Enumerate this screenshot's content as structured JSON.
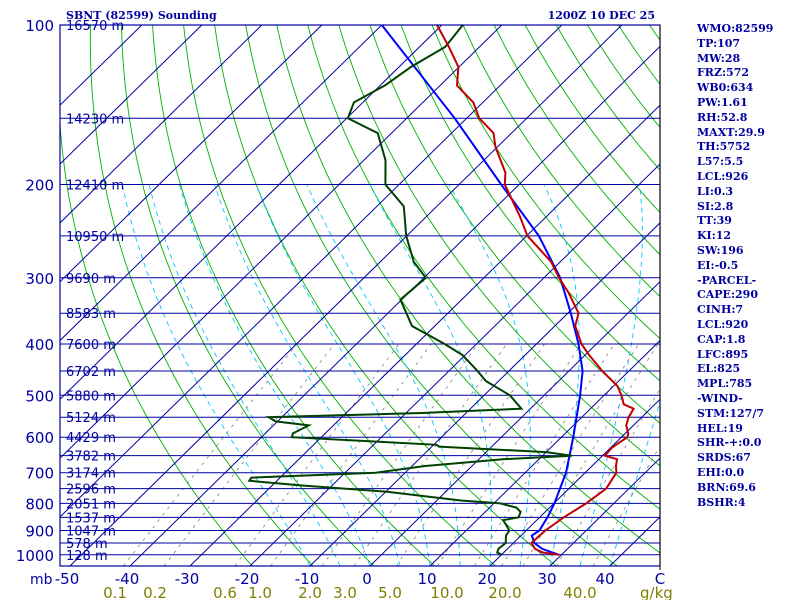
{
  "chart_data": {
    "type": "skew-t",
    "station_label": "SBNT (82599) Sounding",
    "time_label": "1200Z 10 DEC 25",
    "pressure_levels": [
      100,
      200,
      300,
      400,
      500,
      600,
      700,
      800,
      900,
      1000
    ],
    "pressure_labels": [
      "100",
      "200",
      "300",
      "400",
      "500",
      "600",
      "700",
      "800",
      "900",
      "1000"
    ],
    "pressure_axis_unit": "mb",
    "height_labels": [
      {
        "p": 100,
        "text": "16570 m"
      },
      {
        "p": 150,
        "text": "14230 m"
      },
      {
        "p": 200,
        "text": "12410 m"
      },
      {
        "p": 250,
        "text": "10950 m"
      },
      {
        "p": 300,
        "text": "9690 m"
      },
      {
        "p": 350,
        "text": "8583 m"
      },
      {
        "p": 400,
        "text": "7600 m"
      },
      {
        "p": 450,
        "text": "6702 m"
      },
      {
        "p": 500,
        "text": "5880 m"
      },
      {
        "p": 550,
        "text": "5124 m"
      },
      {
        "p": 600,
        "text": "4429 m"
      },
      {
        "p": 650,
        "text": "3782 m"
      },
      {
        "p": 700,
        "text": "3174 m"
      },
      {
        "p": 750,
        "text": "2596 m"
      },
      {
        "p": 800,
        "text": "2051 m"
      },
      {
        "p": 850,
        "text": "1537 m"
      },
      {
        "p": 900,
        "text": "1047 m"
      },
      {
        "p": 950,
        "text": "578 m"
      },
      {
        "p": 1000,
        "text": "128 m"
      }
    ],
    "temperature_ticks": [
      -50,
      -40,
      -30,
      -20,
      -10,
      0,
      10,
      20,
      30,
      40
    ],
    "temperature_tick_labels": [
      "-50",
      "-40",
      "-30",
      "-20",
      "-10",
      "0",
      "10",
      "20",
      "30",
      "40"
    ],
    "temperature_unit": "C",
    "mixing_ratio_labels": [
      "0.1",
      "0.2",
      "0.6",
      "1.0",
      "2.0",
      "3.0",
      "5.0",
      "10.0",
      "20.0",
      "40.0"
    ],
    "mixing_ratio_unit": "g/kg",
    "temperature_profile": [
      [
        1000,
        29.6
      ],
      [
        990,
        26.5
      ],
      [
        975,
        24.6
      ],
      [
        950,
        23.0
      ],
      [
        925,
        23.1
      ],
      [
        900,
        23.2
      ],
      [
        850,
        24.0
      ],
      [
        800,
        25.4
      ],
      [
        750,
        26.2
      ],
      [
        700,
        25.2
      ],
      [
        680,
        24.0
      ],
      [
        660,
        23.0
      ],
      [
        650,
        20.4
      ],
      [
        630,
        20.2
      ],
      [
        620,
        20.4
      ],
      [
        600,
        21.0
      ],
      [
        590,
        20.5
      ],
      [
        570,
        18.8
      ],
      [
        550,
        17.8
      ],
      [
        530,
        17.2
      ],
      [
        520,
        14.8
      ],
      [
        500,
        12.9
      ],
      [
        480,
        10.6
      ],
      [
        450,
        5.6
      ],
      [
        420,
        0.7
      ],
      [
        400,
        -2.5
      ],
      [
        370,
        -6.6
      ],
      [
        350,
        -8.2
      ],
      [
        320,
        -13.4
      ],
      [
        300,
        -17.5
      ],
      [
        280,
        -21.5
      ],
      [
        250,
        -29.9
      ],
      [
        230,
        -34.4
      ],
      [
        200,
        -42.4
      ],
      [
        190,
        -44.3
      ],
      [
        170,
        -50.3
      ],
      [
        160,
        -53.0
      ],
      [
        150,
        -57.9
      ],
      [
        140,
        -61.6
      ],
      [
        130,
        -67.2
      ],
      [
        120,
        -70.1
      ],
      [
        110,
        -75.1
      ],
      [
        100,
        -80.8
      ]
    ],
    "dewpoint_profile": [
      [
        1000,
        20.1
      ],
      [
        990,
        18.9
      ],
      [
        975,
        18.5
      ],
      [
        950,
        18.7
      ],
      [
        920,
        17.5
      ],
      [
        900,
        17.2
      ],
      [
        860,
        14.4
      ],
      [
        850,
        16.5
      ],
      [
        830,
        15.9
      ],
      [
        815,
        14.5
      ],
      [
        800,
        11.1
      ],
      [
        790,
        4.0
      ],
      [
        760,
        -10.0
      ],
      [
        740,
        -25.0
      ],
      [
        725,
        -34.6
      ],
      [
        715,
        -34.8
      ],
      [
        700,
        -14.9
      ],
      [
        680,
        -7.8
      ],
      [
        660,
        4.0
      ],
      [
        650,
        14.9
      ],
      [
        640,
        10.0
      ],
      [
        625,
        -8.8
      ],
      [
        620,
        -9.5
      ],
      [
        600,
        -34.9
      ],
      [
        590,
        -35.4
      ],
      [
        570,
        -34.1
      ],
      [
        560,
        -40.3
      ],
      [
        550,
        -42.2
      ],
      [
        540,
        -17.4
      ],
      [
        530,
        -1.5
      ],
      [
        500,
        -5.7
      ],
      [
        470,
        -12.1
      ],
      [
        450,
        -15.2
      ],
      [
        420,
        -20.4
      ],
      [
        400,
        -25.3
      ],
      [
        370,
        -33.8
      ],
      [
        350,
        -36.9
      ],
      [
        330,
        -40.2
      ],
      [
        300,
        -39.7
      ],
      [
        280,
        -44.4
      ],
      [
        250,
        -50.1
      ],
      [
        220,
        -55.5
      ],
      [
        200,
        -62.3
      ],
      [
        180,
        -66.4
      ],
      [
        160,
        -72.3
      ],
      [
        150,
        -79.8
      ],
      [
        140,
        -81.5
      ],
      [
        130,
        -79.2
      ],
      [
        120,
        -78.0
      ],
      [
        110,
        -75.7
      ],
      [
        100,
        -76.5
      ]
    ],
    "parcel_profile": [
      [
        1000,
        29.6
      ],
      [
        975,
        25.8
      ],
      [
        950,
        23.5
      ],
      [
        920,
        21.8
      ],
      [
        900,
        22.2
      ],
      [
        850,
        21.3
      ],
      [
        800,
        20.1
      ],
      [
        700,
        16.8
      ],
      [
        600,
        12.0
      ],
      [
        500,
        6.0
      ],
      [
        450,
        2.3
      ],
      [
        400,
        -3.0
      ],
      [
        350,
        -9.5
      ],
      [
        300,
        -17.3
      ],
      [
        250,
        -28.0
      ],
      [
        200,
        -43.0
      ],
      [
        150,
        -62.0
      ],
      [
        100,
        -90.0
      ]
    ],
    "indices": [
      "WMO:82599",
      "TP:107",
      "MW:28",
      "FRZ:572",
      "WB0:634",
      "PW:1.61",
      "RH:52.8",
      "MAXT:29.9",
      "TH:5752",
      "L57:5.5",
      "LCL:926",
      "LI:0.3",
      "SI:2.8",
      "TT:39",
      "KI:12",
      "SW:196",
      "EI:-0.5",
      "-PARCEL-",
      "CAPE:290",
      "CINH:7",
      "LCL:920",
      "CAP:1.8",
      "LFC:895",
      "EL:825",
      "MPL:785",
      "-WIND-",
      "STM:127/7",
      "HEL:19",
      "SHR-+:0.0",
      "SRDS:67",
      "EHI:0.0",
      "BRN:69.6",
      "BSHR:4"
    ]
  },
  "colors": {
    "isobar": "#0000a0",
    "isotherm": "#0000a0",
    "dry_adiabat": "#00b000",
    "moist_adiabat": "#00c8ff",
    "mixing_ratio": "#808080",
    "temperature_line": "#c00000",
    "dewpoint_line": "#004000",
    "parcel_line": "#0000ff",
    "mixing_label": "#808000",
    "text": "#0000a0"
  }
}
